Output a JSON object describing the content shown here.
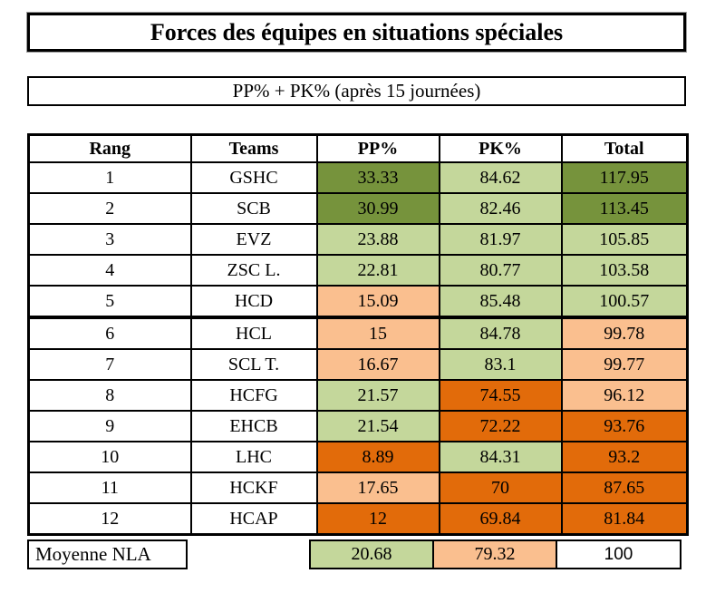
{
  "title": "Forces des équipes en situations spéciales",
  "subtitle": "PP% + PK% (après 15 journées)",
  "colors": {
    "dark_green": "#76933C",
    "light_green": "#C4D79B",
    "light_orange": "#FABF8F",
    "dark_orange": "#E26B0A",
    "white": "#FFFFFF",
    "border": "#000000"
  },
  "table": {
    "headers": [
      "Rang",
      "Teams",
      "PP%",
      "PK%",
      "Total"
    ],
    "rows": [
      {
        "rang": "1",
        "team": "GSHC",
        "pp": "33.33",
        "pk": "84.62",
        "total": "117.95",
        "pp_color": "dark_green",
        "pk_color": "light_green",
        "total_color": "dark_green"
      },
      {
        "rang": "2",
        "team": "SCB",
        "pp": "30.99",
        "pk": "82.46",
        "total": "113.45",
        "pp_color": "dark_green",
        "pk_color": "light_green",
        "total_color": "dark_green"
      },
      {
        "rang": "3",
        "team": "EVZ",
        "pp": "23.88",
        "pk": "81.97",
        "total": "105.85",
        "pp_color": "light_green",
        "pk_color": "light_green",
        "total_color": "light_green"
      },
      {
        "rang": "4",
        "team": "ZSC L.",
        "pp": "22.81",
        "pk": "80.77",
        "total": "103.58",
        "pp_color": "light_green",
        "pk_color": "light_green",
        "total_color": "light_green"
      },
      {
        "rang": "5",
        "team": "HCD",
        "pp": "15.09",
        "pk": "85.48",
        "total": "100.57",
        "pp_color": "light_orange",
        "pk_color": "light_green",
        "total_color": "light_green"
      },
      {
        "rang": "6",
        "team": "HCL",
        "pp": "15",
        "pk": "84.78",
        "total": "99.78",
        "pp_color": "light_orange",
        "pk_color": "light_green",
        "total_color": "light_orange"
      },
      {
        "rang": "7",
        "team": "SCL T.",
        "pp": "16.67",
        "pk": "83.1",
        "total": "99.77",
        "pp_color": "light_orange",
        "pk_color": "light_green",
        "total_color": "light_orange"
      },
      {
        "rang": "8",
        "team": "HCFG",
        "pp": "21.57",
        "pk": "74.55",
        "total": "96.12",
        "pp_color": "light_green",
        "pk_color": "dark_orange",
        "total_color": "light_orange"
      },
      {
        "rang": "9",
        "team": "EHCB",
        "pp": "21.54",
        "pk": "72.22",
        "total": "93.76",
        "pp_color": "light_green",
        "pk_color": "dark_orange",
        "total_color": "dark_orange"
      },
      {
        "rang": "10",
        "team": "LHC",
        "pp": "8.89",
        "pk": "84.31",
        "total": "93.2",
        "pp_color": "dark_orange",
        "pk_color": "light_green",
        "total_color": "dark_orange"
      },
      {
        "rang": "11",
        "team": "HCKF",
        "pp": "17.65",
        "pk": "70",
        "total": "87.65",
        "pp_color": "light_orange",
        "pk_color": "dark_orange",
        "total_color": "dark_orange"
      },
      {
        "rang": "12",
        "team": "HCAP",
        "pp": "12",
        "pk": "69.84",
        "total": "81.84",
        "pp_color": "dark_orange",
        "pk_color": "dark_orange",
        "total_color": "dark_orange"
      }
    ],
    "thick_separator_after_rank": 5
  },
  "footer": {
    "label": "Moyenne NLA",
    "pp": "20.68",
    "pk": "79.32",
    "total": "100",
    "pp_color": "light_green",
    "pk_color": "light_orange",
    "total_color": "white"
  },
  "chart_data": {
    "type": "table",
    "title": "Forces des équipes en situations spéciales",
    "subtitle": "PP% + PK% (après 15 journées)",
    "columns": [
      "Rang",
      "Teams",
      "PP%",
      "PK%",
      "Total"
    ],
    "rows": [
      [
        1,
        "GSHC",
        33.33,
        84.62,
        117.95
      ],
      [
        2,
        "SCB",
        30.99,
        82.46,
        113.45
      ],
      [
        3,
        "EVZ",
        23.88,
        81.97,
        105.85
      ],
      [
        4,
        "ZSC L.",
        22.81,
        80.77,
        103.58
      ],
      [
        5,
        "HCD",
        15.09,
        85.48,
        100.57
      ],
      [
        6,
        "HCL",
        15,
        84.78,
        99.78
      ],
      [
        7,
        "SCL T.",
        16.67,
        83.1,
        99.77
      ],
      [
        8,
        "HCFG",
        21.57,
        74.55,
        96.12
      ],
      [
        9,
        "EHCB",
        21.54,
        72.22,
        93.76
      ],
      [
        10,
        "LHC",
        8.89,
        84.31,
        93.2
      ],
      [
        11,
        "HCKF",
        17.65,
        70,
        87.65
      ],
      [
        12,
        "HCAP",
        12,
        69.84,
        81.84
      ]
    ],
    "summary_row": {
      "label": "Moyenne NLA",
      "pp": 20.68,
      "pk": 79.32,
      "total": 100
    },
    "conditional_formatting": {
      "dark_green": "top values",
      "light_green": "above average",
      "light_orange": "below average",
      "dark_orange": "worst values"
    }
  }
}
